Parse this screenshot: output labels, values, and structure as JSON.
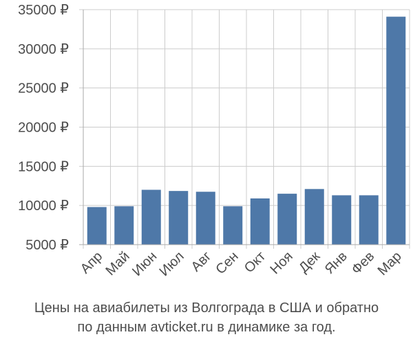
{
  "chart_data": {
    "type": "bar",
    "categories": [
      "Апр",
      "Май",
      "Июн",
      "Июл",
      "Авг",
      "Сен",
      "Окт",
      "Ноя",
      "Дек",
      "Янв",
      "Фев",
      "Мар"
    ],
    "values": [
      9800,
      9900,
      12000,
      11850,
      11750,
      9900,
      10900,
      11500,
      12100,
      11300,
      11300,
      34100
    ],
    "y_ticks": [
      5000,
      10000,
      15000,
      20000,
      25000,
      30000,
      35000
    ],
    "y_tick_labels": [
      "5000 ₽",
      "10000 ₽",
      "15000 ₽",
      "20000 ₽",
      "25000 ₽",
      "30000 ₽",
      "35000 ₽"
    ],
    "ylim": [
      5000,
      35000
    ],
    "grid": true,
    "legend": "none",
    "bar_color": "#4e78a8",
    "grid_color": "#cccccc",
    "axis_color": "#aaaaaa",
    "label_color": "#4d4d4d",
    "xlabel": "",
    "ylabel": ""
  },
  "caption": {
    "line1": "Цены на авиабилеты из Волгограда в США и обратно",
    "line2": "по данным avticket.ru в динамике за год."
  }
}
